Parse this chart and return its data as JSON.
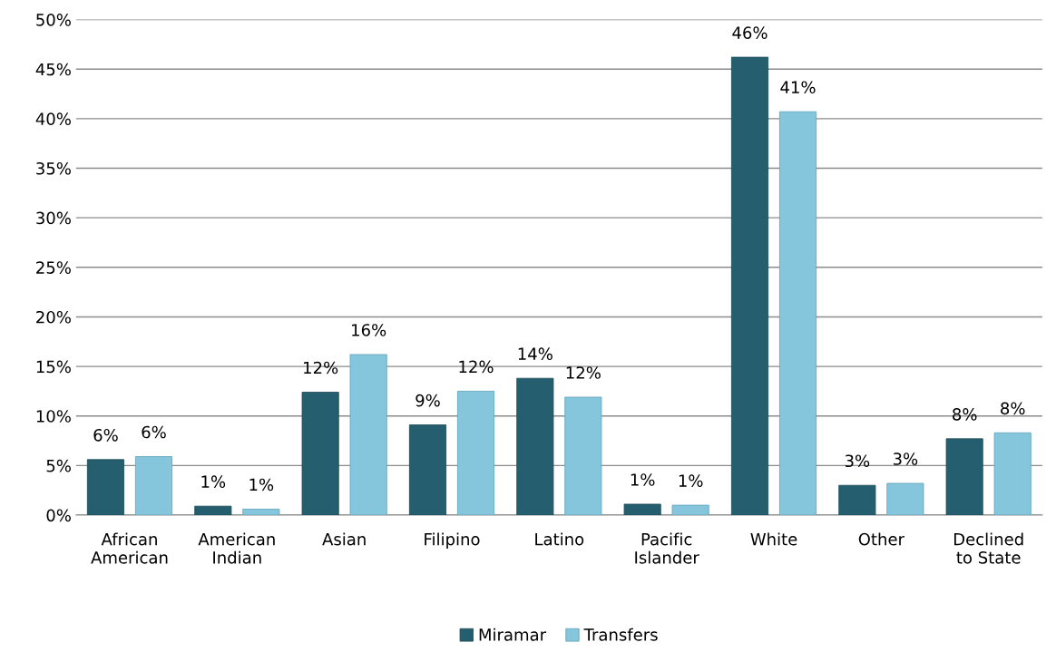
{
  "chart_data": {
    "type": "bar",
    "categories": [
      "African\nAmerican",
      "American\nIndian",
      "Asian",
      "Filipino",
      "Latino",
      "Pacific\nIslander",
      "White",
      "Other",
      "Declined\nto State"
    ],
    "series": [
      {
        "name": "Miramar",
        "color": "#255f6f",
        "values": [
          5.6,
          0.9,
          12.4,
          9.1,
          13.8,
          1.1,
          46.2,
          3.0,
          7.7
        ],
        "value_labels": [
          "6%",
          "1%",
          "12%",
          "9%",
          "14%",
          "1%",
          "46%",
          "3%",
          "8%"
        ]
      },
      {
        "name": "Transfers",
        "color": "#86c6dc",
        "values": [
          5.9,
          0.6,
          16.2,
          12.5,
          11.9,
          1.0,
          40.7,
          3.2,
          8.3
        ],
        "value_labels": [
          "6%",
          "1%",
          "16%",
          "12%",
          "12%",
          "1%",
          "41%",
          "3%",
          "8%"
        ]
      }
    ],
    "ylim": [
      0,
      50
    ],
    "yticks": [
      {
        "value": 0,
        "label": "0%"
      },
      {
        "value": 5,
        "label": "5%"
      },
      {
        "value": 10,
        "label": "10%"
      },
      {
        "value": 15,
        "label": "15%"
      },
      {
        "value": 20,
        "label": "20%"
      },
      {
        "value": 25,
        "label": "25%"
      },
      {
        "value": 30,
        "label": "30%"
      },
      {
        "value": 35,
        "label": "35%"
      },
      {
        "value": 40,
        "label": "40%"
      },
      {
        "value": 45,
        "label": "45%"
      },
      {
        "value": 50,
        "label": "50%"
      }
    ],
    "grid": "y",
    "legend": "bottom"
  }
}
